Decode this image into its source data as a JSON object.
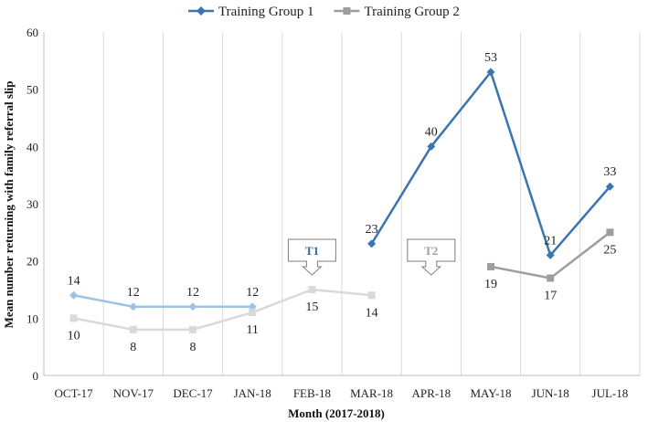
{
  "chart_data": {
    "type": "line",
    "categories": [
      "OCT-17",
      "NOV-17",
      "DEC-17",
      "JAN-18",
      "FEB-18",
      "MAR-18",
      "APR-18",
      "MAY-18",
      "JUN-18",
      "JUL-18"
    ],
    "xlabel": "Month (2017-2018)",
    "ylabel": "Mean number returning with family referral slip",
    "ylim": [
      0,
      60
    ],
    "yticks": [
      0,
      10,
      20,
      30,
      40,
      50,
      60
    ],
    "grid": "vertical",
    "legend_position": "top",
    "series": [
      {
        "name": "Training Group 1",
        "color": "#3a75b0",
        "marker": "diamond",
        "values": [
          14,
          12,
          12,
          12,
          null,
          23,
          40,
          53,
          21,
          33
        ],
        "labels": [
          "14",
          "12",
          "12",
          "12",
          null,
          "23",
          "40",
          "53",
          "21",
          "33"
        ]
      },
      {
        "name": "Training Group 2",
        "color": "#9e9e9e",
        "marker": "square",
        "values": [
          10,
          8,
          8,
          11,
          15,
          14,
          null,
          19,
          17,
          25
        ],
        "labels": [
          "10",
          "8",
          "8",
          "11",
          "15",
          "14",
          null,
          "19",
          "17",
          "25"
        ]
      }
    ],
    "faded_segments": {
      "Training Group 1": [
        0,
        3
      ],
      "Training Group 2": [
        0,
        5
      ],
      "faded_colors": {
        "Training Group 1": "#9dc3e6",
        "Training Group 2": "#d9d9d9"
      }
    },
    "annotations": [
      {
        "text": "T1",
        "category": "FEB-18",
        "color": "#2e6da4"
      },
      {
        "text": "T2",
        "category": "APR-18",
        "color": "#9e9e9e"
      }
    ]
  }
}
